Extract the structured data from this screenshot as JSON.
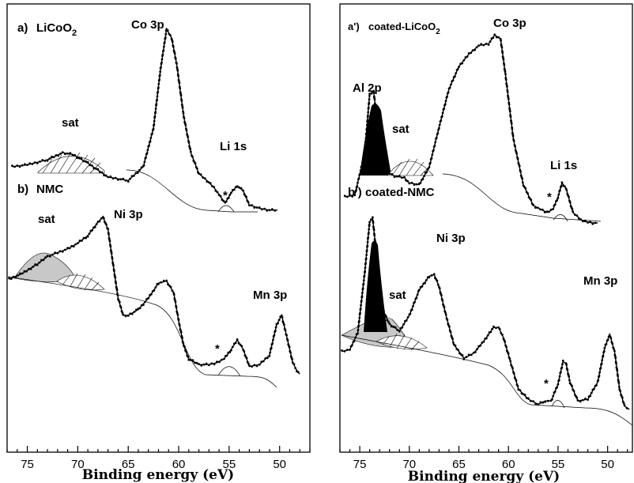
{
  "chart_data": [
    {
      "type": "line",
      "panel": "left",
      "xlabel": "Binding energy (eV)",
      "xlim": [
        77,
        47
      ],
      "x_ticks": [
        75,
        70,
        65,
        60,
        55,
        50
      ],
      "spectra": [
        {
          "tag": "a)",
          "name": "LiCoO",
          "sub": "2",
          "baseline_y": 0,
          "points": [
            [
              76.5,
              0.26
            ],
            [
              75,
              0.27
            ],
            [
              73,
              0.3
            ],
            [
              71.5,
              0.34
            ],
            [
              70.5,
              0.33
            ],
            [
              69,
              0.28
            ],
            [
              67,
              0.2
            ],
            [
              65,
              0.18
            ],
            [
              63.5,
              0.26
            ],
            [
              62.5,
              0.48
            ],
            [
              61.8,
              0.82
            ],
            [
              61.2,
              1.05
            ],
            [
              60.7,
              1.0
            ],
            [
              60.2,
              0.85
            ],
            [
              59.5,
              0.55
            ],
            [
              58.8,
              0.34
            ],
            [
              58,
              0.22
            ],
            [
              57.2,
              0.18
            ],
            [
              56.5,
              0.14
            ],
            [
              56,
              0.1
            ],
            [
              55.4,
              0.05
            ],
            [
              54.8,
              0.11
            ],
            [
              54.2,
              0.15
            ],
            [
              53.6,
              0.12
            ],
            [
              53,
              0.04
            ],
            [
              52,
              0.02
            ],
            [
              51,
              0.01
            ],
            [
              50.2,
              0.01
            ]
          ],
          "peaks": [
            {
              "label": "Co 3p",
              "x": 61.2
            },
            {
              "label": "Li 1s",
              "x": 54.3
            },
            {
              "label": "sat",
              "x": 71
            },
            {
              "label": "*",
              "x": 55.6
            }
          ]
        },
        {
          "tag": "b)",
          "name": "NMC",
          "baseline_y": 0,
          "points": [
            [
              76.8,
              0.52
            ],
            [
              75.5,
              0.55
            ],
            [
              74,
              0.6
            ],
            [
              73,
              0.64
            ],
            [
              72,
              0.66
            ],
            [
              71,
              0.68
            ],
            [
              70,
              0.71
            ],
            [
              69,
              0.75
            ],
            [
              68,
              0.82
            ],
            [
              67.5,
              0.85
            ],
            [
              67,
              0.78
            ],
            [
              66.5,
              0.6
            ],
            [
              66,
              0.42
            ],
            [
              65.5,
              0.33
            ],
            [
              65,
              0.33
            ],
            [
              64,
              0.36
            ],
            [
              63,
              0.42
            ],
            [
              62,
              0.5
            ],
            [
              61.2,
              0.51
            ],
            [
              60.5,
              0.45
            ],
            [
              60,
              0.3
            ],
            [
              59.5,
              0.17
            ],
            [
              59,
              0.1
            ],
            [
              58,
              0.07
            ],
            [
              57,
              0.07
            ],
            [
              56.2,
              0.08
            ],
            [
              55.5,
              0.1
            ],
            [
              54.8,
              0.15
            ],
            [
              54.2,
              0.2
            ],
            [
              53.6,
              0.15
            ],
            [
              53,
              0.06
            ],
            [
              52,
              0.07
            ],
            [
              51,
              0.12
            ],
            [
              50.3,
              0.28
            ],
            [
              49.8,
              0.33
            ],
            [
              49.3,
              0.22
            ],
            [
              48.7,
              0.08
            ],
            [
              48.3,
              0.04
            ],
            [
              48,
              0.02
            ]
          ],
          "peaks": [
            {
              "label": "Ni 3p",
              "x": 67.3
            },
            {
              "label": "Mn 3p",
              "x": 49.8
            },
            {
              "label": "sat",
              "x": 73.5
            },
            {
              "label": "*",
              "x": 55.8
            }
          ]
        }
      ]
    },
    {
      "type": "line",
      "panel": "right",
      "xlabel": "Binding energy (eV)",
      "xlim": [
        77,
        47.5
      ],
      "x_ticks": [
        75,
        70,
        65,
        60,
        55,
        50
      ],
      "spectra": [
        {
          "tag": "a')",
          "name": "coated-LiCoO",
          "sub": "2",
          "baseline_y": 0,
          "points": [
            [
              76.5,
              0.15
            ],
            [
              75.5,
              0.16
            ],
            [
              74.5,
              0.4
            ],
            [
              74,
              0.74
            ],
            [
              73.6,
              0.76
            ],
            [
              73.2,
              0.55
            ],
            [
              72.5,
              0.3
            ],
            [
              71.5,
              0.27
            ],
            [
              70.5,
              0.26
            ],
            [
              70,
              0.23
            ],
            [
              69,
              0.22
            ],
            [
              68,
              0.32
            ],
            [
              67,
              0.55
            ],
            [
              66,
              0.77
            ],
            [
              65,
              0.9
            ],
            [
              64,
              0.97
            ],
            [
              63,
              1.02
            ],
            [
              62,
              1.03
            ],
            [
              61.4,
              1.08
            ],
            [
              60.8,
              1.06
            ],
            [
              60.3,
              0.85
            ],
            [
              59.5,
              0.48
            ],
            [
              58.5,
              0.22
            ],
            [
              57.5,
              0.1
            ],
            [
              56.8,
              0.08
            ],
            [
              56.1,
              0.06
            ],
            [
              55.5,
              0.08
            ],
            [
              55,
              0.15
            ],
            [
              54.6,
              0.23
            ],
            [
              54.2,
              0.2
            ],
            [
              53.5,
              0.06
            ],
            [
              52.5,
              0.01
            ],
            [
              51.5,
              0.0
            ],
            [
              51,
              0.0
            ]
          ],
          "peaks": [
            {
              "label": "Co 3p",
              "x": 61
            },
            {
              "label": "Al 2p",
              "x": 73.8
            },
            {
              "label": "sat",
              "x": 70.5
            },
            {
              "label": "Li 1s",
              "x": 54.5
            },
            {
              "label": "*",
              "x": 56
            }
          ]
        },
        {
          "tag": "b')",
          "name": "coated-NMC",
          "baseline_y": 0,
          "points": [
            [
              76.8,
              0.34
            ],
            [
              76,
              0.35
            ],
            [
              75.2,
              0.45
            ],
            [
              74.5,
              0.8
            ],
            [
              74,
              1.1
            ],
            [
              73.7,
              1.12
            ],
            [
              73.3,
              0.9
            ],
            [
              72.8,
              0.6
            ],
            [
              72,
              0.5
            ],
            [
              71,
              0.46
            ],
            [
              70,
              0.55
            ],
            [
              69,
              0.7
            ],
            [
              68,
              0.78
            ],
            [
              67.5,
              0.79
            ],
            [
              67,
              0.72
            ],
            [
              66.3,
              0.55
            ],
            [
              65.5,
              0.38
            ],
            [
              64.5,
              0.3
            ],
            [
              63.5,
              0.33
            ],
            [
              62.5,
              0.4
            ],
            [
              61.5,
              0.48
            ],
            [
              61,
              0.48
            ],
            [
              60.5,
              0.42
            ],
            [
              59.8,
              0.28
            ],
            [
              59,
              0.12
            ],
            [
              58,
              0.06
            ],
            [
              57,
              0.03
            ],
            [
              56.3,
              0.05
            ],
            [
              55.7,
              0.05
            ],
            [
              55,
              0.15
            ],
            [
              54.5,
              0.28
            ],
            [
              54.2,
              0.27
            ],
            [
              53.8,
              0.16
            ],
            [
              53,
              0.05
            ],
            [
              52,
              0.06
            ],
            [
              51,
              0.16
            ],
            [
              50.3,
              0.36
            ],
            [
              49.8,
              0.44
            ],
            [
              49.3,
              0.34
            ],
            [
              48.8,
              0.12
            ],
            [
              48.3,
              0.02
            ],
            [
              47.8,
              0.0
            ]
          ],
          "peaks": [
            {
              "label": "Ni 3p",
              "x": 67.3
            },
            {
              "label": "Mn 3p",
              "x": 49.8
            },
            {
              "label": "sat",
              "x": 70.5
            },
            {
              "label": "*",
              "x": 56.2
            }
          ]
        }
      ]
    }
  ]
}
